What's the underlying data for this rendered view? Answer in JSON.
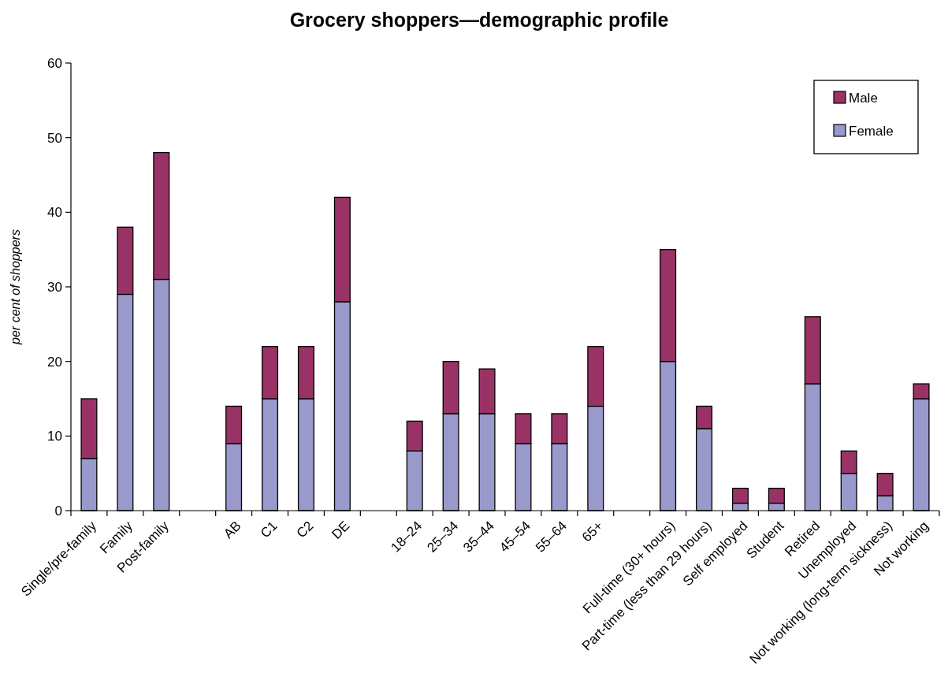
{
  "chart_data": {
    "type": "bar",
    "title": "Grocery shoppers—demographic profile",
    "ylabel": "per cent of shoppers",
    "categories": [
      "Single/pre-family",
      "Family",
      "Post-family",
      null,
      "AB",
      "C1",
      "C2",
      "DE",
      null,
      "18–24",
      "25–34",
      "35–44",
      "45–54",
      "55–64",
      "65+",
      null,
      "Full-time (30+ hours)",
      "Part-time (less than 29 hours)",
      "Self employed",
      "Student",
      "Retired",
      "Unemployed",
      "Not working (long-term sickness)",
      "Not working"
    ],
    "series": [
      {
        "name": "Female",
        "color": "#9999cc",
        "values": [
          7,
          29,
          31,
          null,
          9,
          15,
          15,
          28,
          null,
          8,
          13,
          13,
          9,
          9,
          14,
          null,
          20,
          11,
          1,
          1,
          17,
          5,
          2,
          15
        ]
      },
      {
        "name": "Male",
        "color": "#993366",
        "values": [
          8,
          9,
          17,
          null,
          5,
          7,
          7,
          14,
          null,
          4,
          7,
          6,
          4,
          4,
          8,
          null,
          15,
          3,
          2,
          2,
          9,
          3,
          3,
          2
        ]
      }
    ],
    "stacked": true,
    "ylim": [
      0,
      60
    ],
    "yticks": [
      0,
      10,
      20,
      30,
      40,
      50,
      60
    ],
    "legend": "top right"
  }
}
